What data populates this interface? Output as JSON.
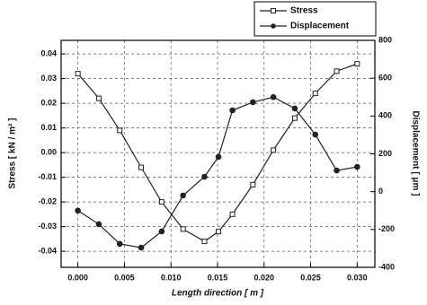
{
  "chart_data": {
    "type": "line",
    "xlabel": "Length direction [ m ]",
    "ylabel": "Stress [ kN / m² ]",
    "y2label": "Displacement [ μm ]",
    "x": [
      0,
      0.00225,
      0.0045,
      0.0068,
      0.009,
      0.0113,
      0.0136,
      0.0151,
      0.0166,
      0.0188,
      0.021,
      0.0233,
      0.0255,
      0.0278,
      0.03
    ],
    "series": [
      {
        "name": "Stress",
        "color": "#222",
        "marker": "square",
        "axis": "y",
        "values": [
          0.032,
          0.022,
          0.009,
          -0.006,
          -0.02,
          -0.031,
          -0.036,
          -0.032,
          -0.025,
          -0.013,
          0.001,
          0.014,
          0.024,
          0.033,
          0.036
        ]
      },
      {
        "name": "Displacement",
        "color": "#222",
        "marker": "circle",
        "axis": "y2",
        "values": [
          -100,
          -172,
          -276,
          -296,
          -210,
          -20,
          79,
          184,
          430,
          473,
          500,
          440,
          302,
          112,
          131
        ]
      }
    ],
    "xlim": [
      -0.0018,
      0.0319
    ],
    "xticks": [
      {
        "value": 0,
        "label": "0.000"
      },
      0.005,
      {
        "value": 0.01,
        "label": "0.010"
      },
      0.015,
      {
        "value": 0.02,
        "label": "0.020"
      },
      0.025,
      {
        "value": 0.03,
        "label": "0.030"
      }
    ],
    "ylim": [
      -0.0465,
      0.0455
    ],
    "yticks": [
      -0.04,
      -0.03,
      -0.02,
      -0.01,
      {
        "value": 0,
        "label": "0.00"
      },
      0.01,
      0.02,
      0.03,
      0.04
    ],
    "y2lim": [
      -400,
      800
    ],
    "y2ticks": [
      -400,
      -200,
      0,
      200,
      400,
      600,
      800
    ],
    "grid": true,
    "legend": "top-right"
  }
}
